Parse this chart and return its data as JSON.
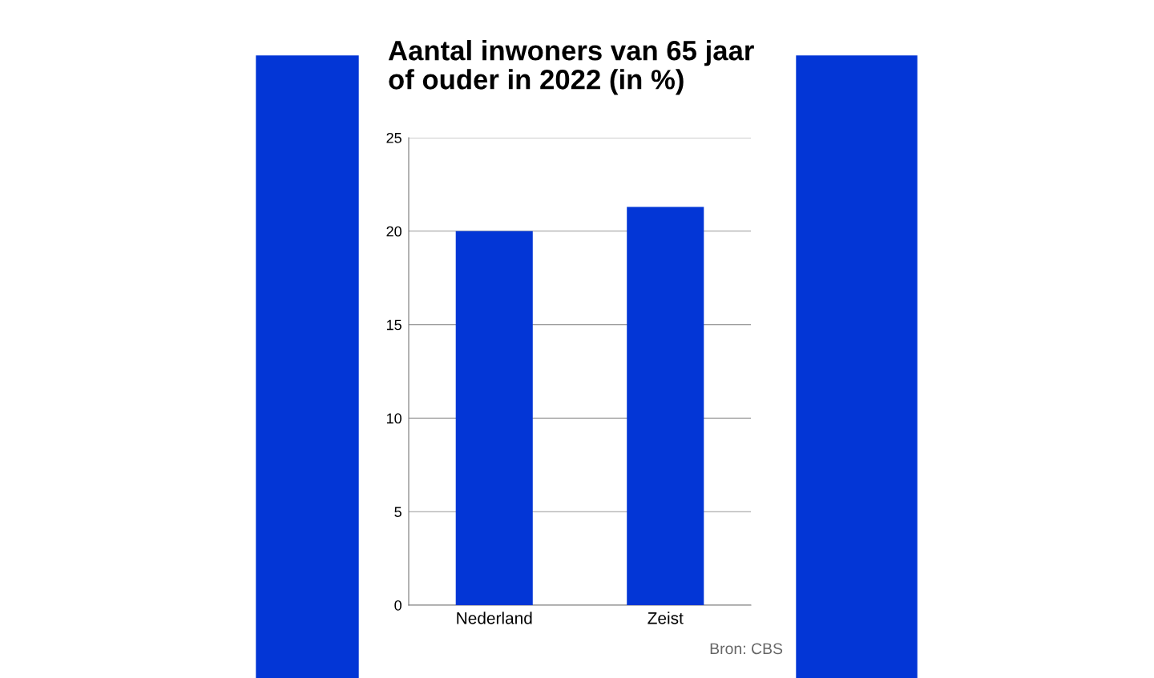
{
  "chart_data": {
    "type": "bar",
    "title": "Aantal inwoners van 65 jaar\nof ouder in 2022 (in %)",
    "categories": [
      "Nederland",
      "Zeist"
    ],
    "values": [
      20.0,
      21.3
    ],
    "color": "#0336d6",
    "ylim": [
      0,
      25
    ],
    "yticks": [
      0,
      5,
      10,
      15,
      20,
      25
    ],
    "grid": "y",
    "annotations": [
      "Bron: CBS"
    ]
  }
}
